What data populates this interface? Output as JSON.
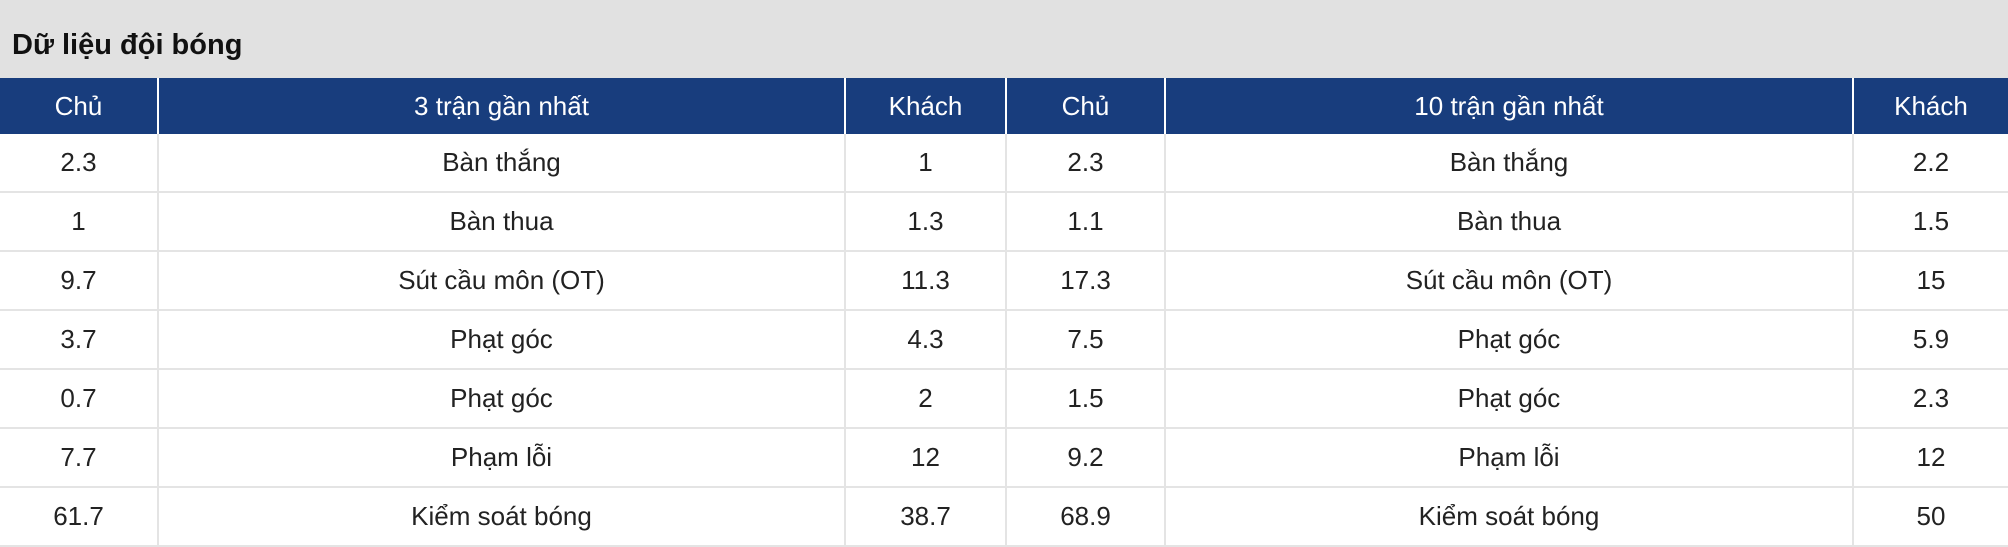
{
  "title": "Dữ liệu đội bóng",
  "headers": [
    "Chủ",
    "3 trận gần nhất",
    "Khách",
    "Chủ",
    "10 trận gần nhất",
    "Khách"
  ],
  "rows": [
    [
      "2.3",
      "Bàn thắng",
      "1",
      "2.3",
      "Bàn thắng",
      "2.2"
    ],
    [
      "1",
      "Bàn thua",
      "1.3",
      "1.1",
      "Bàn thua",
      "1.5"
    ],
    [
      "9.7",
      "Sút cầu môn (OT)",
      "11.3",
      "17.3",
      "Sút cầu môn (OT)",
      "15"
    ],
    [
      "3.7",
      "Phạt góc",
      "4.3",
      "7.5",
      "Phạt góc",
      "5.9"
    ],
    [
      "0.7",
      "Phạt góc",
      "2",
      "1.5",
      "Phạt góc",
      "2.3"
    ],
    [
      "7.7",
      "Phạm lỗi",
      "12",
      "9.2",
      "Phạm lỗi",
      "12"
    ],
    [
      "61.7",
      "Kiểm soát bóng",
      "38.7",
      "68.9",
      "Kiểm soát bóng",
      "50"
    ]
  ],
  "colors": {
    "header_bg": "#183d7d",
    "title_bg": "#e1e1e1"
  }
}
